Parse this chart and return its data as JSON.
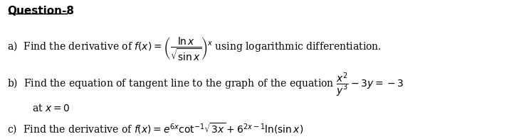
{
  "title": "Question-8",
  "background_color": "#ffffff",
  "text_color": "#000000",
  "figsize": [
    7.15,
    1.96
  ],
  "dpi": 100
}
